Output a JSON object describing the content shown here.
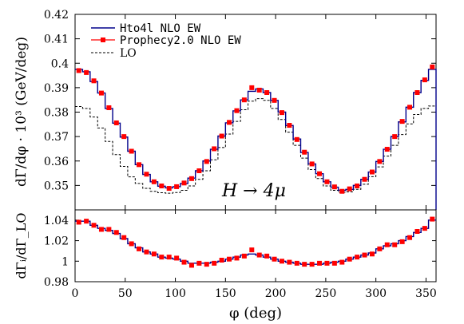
{
  "chart_data": [
    {
      "type": "line",
      "ylabel": "dΓ/dφ · 10³ (GeV/deg)",
      "annotation": "H → 4μ",
      "xlim": [
        0,
        360
      ],
      "ylim": [
        0.34,
        0.42
      ],
      "x_ticks": [
        0,
        50,
        100,
        150,
        200,
        250,
        300,
        350
      ],
      "y_ticks": [
        0.35,
        0.36,
        0.37,
        0.38,
        0.39,
        0.4,
        0.41,
        0.42
      ],
      "y_tick_labels": [
        "0.35",
        "0.36",
        "0.37",
        "0.38",
        "0.39",
        "0.4",
        "0.41",
        "0.42"
      ],
      "legend_position": "top-left",
      "x": [
        0,
        7.5,
        15,
        22.5,
        30,
        37.5,
        45,
        52.5,
        60,
        67.5,
        75,
        82.5,
        90,
        97.5,
        105,
        112.5,
        120,
        127.5,
        135,
        142.5,
        150,
        157.5,
        165,
        172.5,
        180,
        187.5,
        195,
        202.5,
        210,
        217.5,
        225,
        232.5,
        240,
        247.5,
        255,
        262.5,
        270,
        277.5,
        285,
        292.5,
        300,
        307.5,
        315,
        322.5,
        330,
        337.5,
        345,
        352.5
      ],
      "series": [
        {
          "name": "Hto4l NLO EW",
          "style": "step",
          "color": "#00008b",
          "values": [
            0.3975,
            0.3965,
            0.3925,
            0.3878,
            0.3815,
            0.3755,
            0.3698,
            0.364,
            0.3585,
            0.3545,
            0.3515,
            0.3497,
            0.349,
            0.3495,
            0.3508,
            0.353,
            0.356,
            0.36,
            0.3648,
            0.3702,
            0.3756,
            0.3805,
            0.385,
            0.3885,
            0.3895,
            0.388,
            0.3848,
            0.38,
            0.3745,
            0.369,
            0.3635,
            0.3588,
            0.3548,
            0.3515,
            0.3493,
            0.348,
            0.3484,
            0.35,
            0.3525,
            0.3555,
            0.3598,
            0.3648,
            0.37,
            0.376,
            0.382,
            0.388,
            0.393,
            0.3975
          ]
        },
        {
          "name": "Prophecy2.0 NLO EW",
          "style": "points",
          "color": "#ff0000",
          "values": [
            0.397,
            0.3962,
            0.3928,
            0.3878,
            0.3818,
            0.3756,
            0.37,
            0.364,
            0.3585,
            0.3546,
            0.3515,
            0.3498,
            0.3488,
            0.3495,
            0.351,
            0.3528,
            0.356,
            0.3598,
            0.365,
            0.3702,
            0.3758,
            0.3806,
            0.385,
            0.39,
            0.389,
            0.388,
            0.3848,
            0.3798,
            0.3746,
            0.3688,
            0.3636,
            0.3588,
            0.3548,
            0.3515,
            0.3494,
            0.3476,
            0.3486,
            0.3498,
            0.3525,
            0.3555,
            0.3598,
            0.3648,
            0.37,
            0.3762,
            0.382,
            0.388,
            0.3932,
            0.3985
          ]
        },
        {
          "name": "LO",
          "style": "dashed-step",
          "color": "#000000",
          "values": [
            0.3823,
            0.3815,
            0.378,
            0.3735,
            0.368,
            0.3626,
            0.3578,
            0.3535,
            0.3508,
            0.3488,
            0.3476,
            0.347,
            0.3468,
            0.3471,
            0.348,
            0.3498,
            0.3525,
            0.356,
            0.3605,
            0.3655,
            0.371,
            0.3762,
            0.381,
            0.3845,
            0.3855,
            0.3848,
            0.3815,
            0.377,
            0.3718,
            0.3664,
            0.3612,
            0.3565,
            0.3528,
            0.3498,
            0.348,
            0.3472,
            0.3474,
            0.3484,
            0.3505,
            0.3536,
            0.3576,
            0.362,
            0.3664,
            0.3708,
            0.3752,
            0.379,
            0.3815,
            0.3825
          ]
        }
      ]
    },
    {
      "type": "line",
      "xlabel": "φ (deg)",
      "ylabel": "dΓᵢ/dΓ_LO",
      "xlim": [
        0,
        360
      ],
      "ylim": [
        0.98,
        1.05
      ],
      "x_ticks": [
        0,
        50,
        100,
        150,
        200,
        250,
        300,
        350
      ],
      "x_tick_labels": [
        "0",
        "50",
        "100",
        "150",
        "200",
        "250",
        "300",
        "350"
      ],
      "y_ticks": [
        0.98,
        1,
        1.02,
        1.04
      ],
      "y_tick_labels": [
        "0.98",
        "1",
        "1.02",
        "1.04"
      ],
      "x": [
        0,
        7.5,
        15,
        22.5,
        30,
        37.5,
        45,
        52.5,
        60,
        67.5,
        75,
        82.5,
        90,
        97.5,
        105,
        112.5,
        120,
        127.5,
        135,
        142.5,
        150,
        157.5,
        165,
        172.5,
        180,
        187.5,
        195,
        202.5,
        210,
        217.5,
        225,
        232.5,
        240,
        247.5,
        255,
        262.5,
        270,
        277.5,
        285,
        292.5,
        300,
        307.5,
        315,
        322.5,
        330,
        337.5,
        345,
        352.5
      ],
      "series": [
        {
          "name": "Hto4l NLO EW",
          "style": "step",
          "color": "#00008b",
          "values": [
            1.039,
            1.039,
            1.035,
            1.032,
            1.03,
            1.027,
            1.022,
            1.017,
            1.013,
            1.009,
            1.007,
            1.004,
            1.003,
            1.002,
            1.0,
            0.998,
            0.998,
            0.998,
            0.999,
            1.0,
            1.002,
            1.004,
            1.006,
            1.007,
            1.006,
            1.004,
            1.002,
            1.0,
            0.999,
            0.998,
            0.997,
            0.997,
            0.997,
            0.998,
            0.999,
            1.0,
            1.002,
            1.004,
            1.006,
            1.008,
            1.012,
            1.015,
            1.017,
            1.02,
            1.024,
            1.028,
            1.032,
            1.04
          ]
        },
        {
          "name": "Prophecy2.0 NLO EW",
          "style": "points",
          "color": "#ff0000",
          "values": [
            1.038,
            1.039,
            1.035,
            1.031,
            1.031,
            1.028,
            1.023,
            1.017,
            1.012,
            1.009,
            1.007,
            1.004,
            1.004,
            1.003,
            0.999,
            0.996,
            0.998,
            0.997,
            0.998,
            1.001,
            1.002,
            1.003,
            1.005,
            1.011,
            1.006,
            1.005,
            1.002,
            1.0,
            0.999,
            0.998,
            0.997,
            0.997,
            0.998,
            0.998,
            0.998,
            0.999,
            1.002,
            1.004,
            1.006,
            1.007,
            1.012,
            1.016,
            1.016,
            1.019,
            1.023,
            1.029,
            1.032,
            1.041
          ]
        }
      ]
    }
  ]
}
